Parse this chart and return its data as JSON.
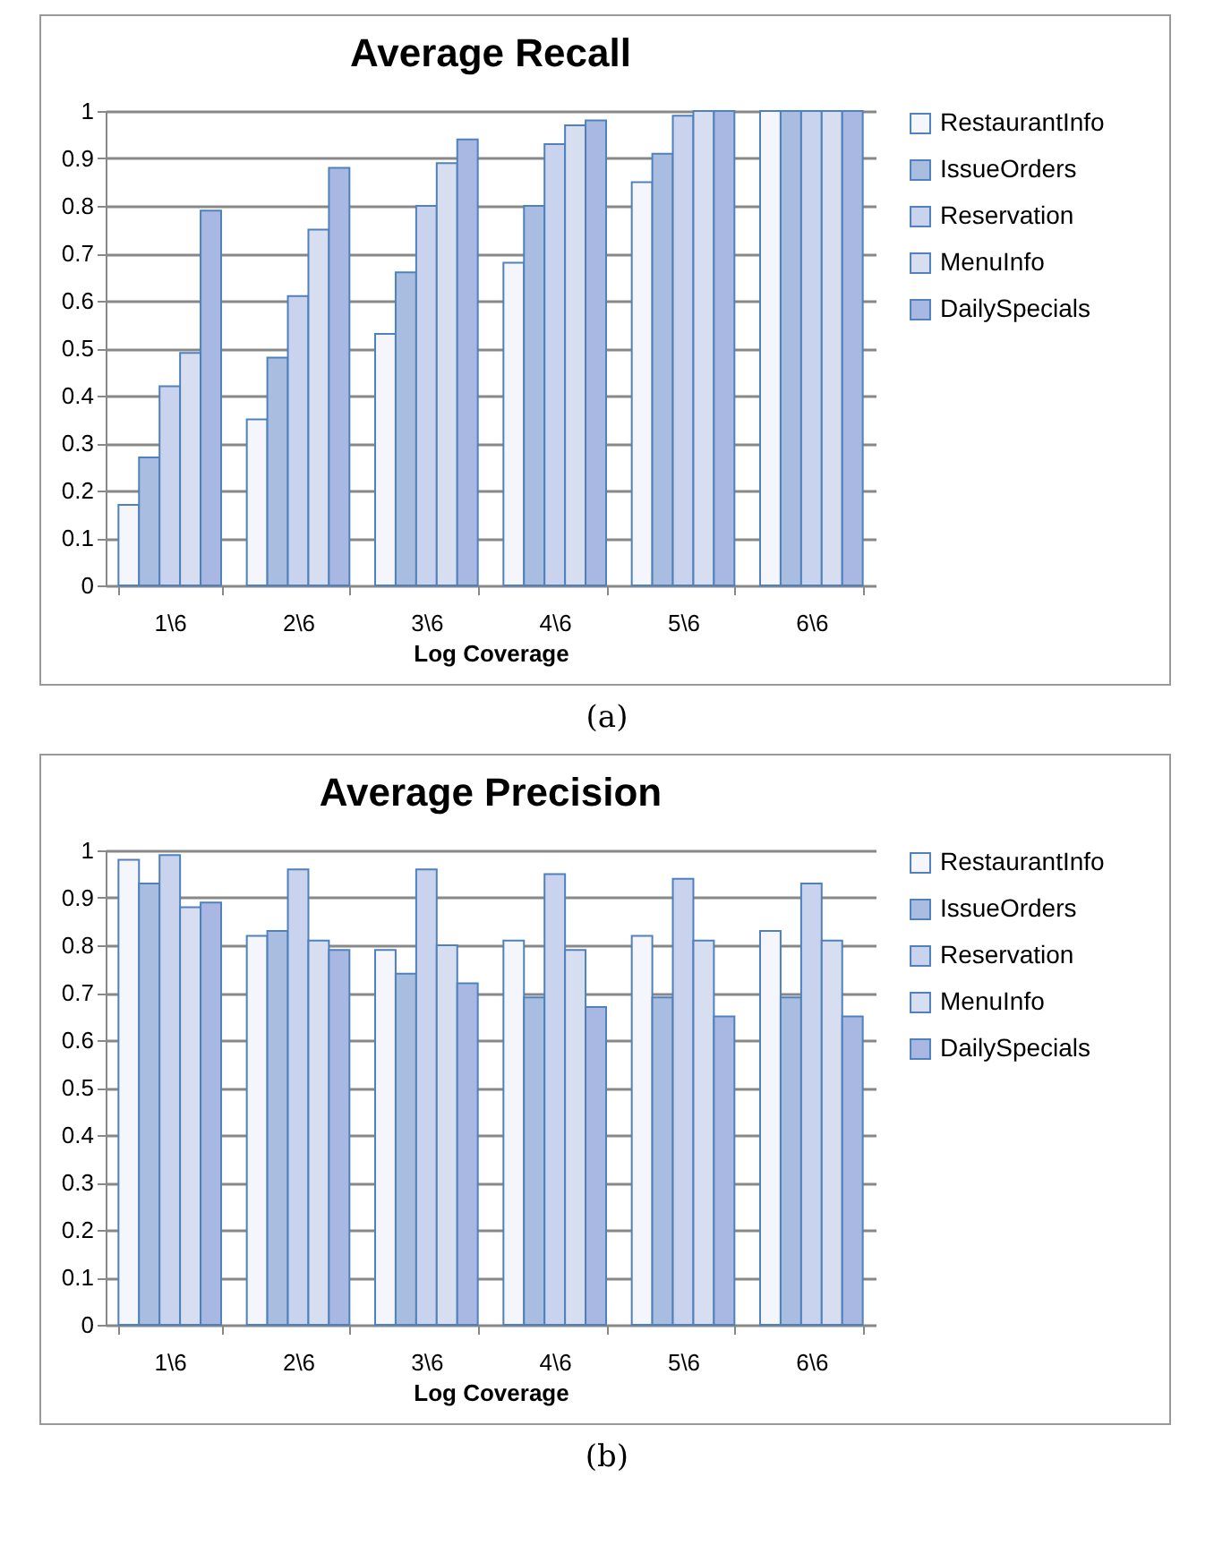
{
  "chart_data": [
    {
      "type": "bar",
      "title": "Average Recall",
      "xlabel": "Log Coverage",
      "categories": [
        "1\\6",
        "2\\6",
        "3\\6",
        "4\\6",
        "5\\6",
        "6\\6"
      ],
      "ylim": [
        0,
        1
      ],
      "yticks": [
        0,
        0.1,
        0.2,
        0.3,
        0.4,
        0.5,
        0.6,
        0.7,
        0.8,
        0.9,
        1
      ],
      "grid": "y",
      "legend": "right",
      "annotations": [
        "(a)"
      ],
      "series": [
        {
          "name": "RestaurantInfo",
          "color": "#f4f6fb",
          "values": [
            0.17,
            0.35,
            0.53,
            0.68,
            0.85,
            1
          ]
        },
        {
          "name": "IssueOrders",
          "color": "#a9bde0",
          "values": [
            0.27,
            0.48,
            0.66,
            0.8,
            0.91,
            1
          ]
        },
        {
          "name": "Reservation",
          "color": "#c9d3ee",
          "values": [
            0.42,
            0.61,
            0.8,
            0.93,
            0.99,
            1
          ]
        },
        {
          "name": "MenuInfo",
          "color": "#d6def0",
          "values": [
            0.49,
            0.75,
            0.89,
            0.97,
            1,
            1
          ]
        },
        {
          "name": "DailySpecials",
          "color": "#a8b8e2",
          "values": [
            0.79,
            0.88,
            0.94,
            0.98,
            1,
            1
          ]
        }
      ]
    },
    {
      "type": "bar",
      "title": "Average Precision",
      "xlabel": "Log Coverage",
      "categories": [
        "1\\6",
        "2\\6",
        "3\\6",
        "4\\6",
        "5\\6",
        "6\\6"
      ],
      "ylim": [
        0,
        1
      ],
      "yticks": [
        0,
        0.1,
        0.2,
        0.3,
        0.4,
        0.5,
        0.6,
        0.7,
        0.8,
        0.9,
        1
      ],
      "grid": "y",
      "legend": "right",
      "annotations": [
        "(b)"
      ],
      "series": [
        {
          "name": "RestaurantInfo",
          "color": "#f4f6fb",
          "values": [
            0.98,
            0.82,
            0.79,
            0.81,
            0.82,
            0.83
          ]
        },
        {
          "name": "IssueOrders",
          "color": "#a9bde0",
          "values": [
            0.93,
            0.83,
            0.74,
            0.69,
            0.69,
            0.69
          ]
        },
        {
          "name": "Reservation",
          "color": "#c9d3ee",
          "values": [
            0.99,
            0.96,
            0.96,
            0.95,
            0.94,
            0.93
          ]
        },
        {
          "name": "MenuInfo",
          "color": "#d6def0",
          "values": [
            0.88,
            0.81,
            0.8,
            0.79,
            0.81,
            0.81
          ]
        },
        {
          "name": "DailySpecials",
          "color": "#a8b8e2",
          "values": [
            0.89,
            0.79,
            0.72,
            0.67,
            0.65,
            0.65
          ]
        }
      ]
    }
  ]
}
